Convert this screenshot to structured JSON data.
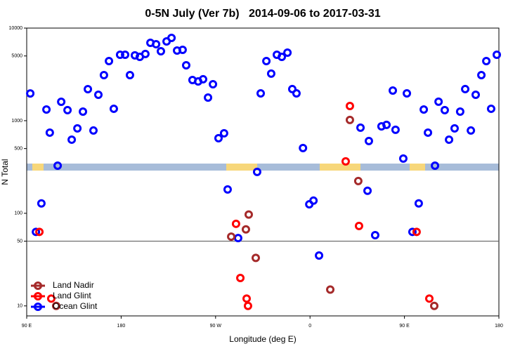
{
  "chart_data": {
    "type": "scatter",
    "title": "0-5N July (Ver 7b)   2014-09-06 to 2017-03-31",
    "x_label": "Longitude (deg E)",
    "y_label": "N Total",
    "log_y": true,
    "xlim": [
      90,
      540
    ],
    "ylim": [
      7.8,
      10000
    ],
    "xticks": [
      {
        "value": 90,
        "label": "90 E"
      },
      180,
      {
        "value": 270,
        "label": "90 W"
      },
      {
        "value": 360,
        "label": "0"
      },
      {
        "value": 450,
        "label": "90 E"
      },
      {
        "value": 540,
        "label": "180"
      }
    ],
    "yticks": [
      10,
      50,
      100,
      500,
      1000,
      5000,
      10000
    ],
    "hline": 50,
    "legend": "lower left",
    "series": [
      {
        "name": "Land Nadir",
        "color": "#a52a2a",
        "x": [
          118.1,
          284.9,
          298.9,
          301.6,
          308.3,
          379.3,
          398,
          406,
          478.4
        ],
        "values": [
          10,
          56,
          67,
          97,
          33,
          15,
          1018,
          223,
          10
        ]
      },
      {
        "name": "Land Glint",
        "color": "#ff0000",
        "x": [
          102.1,
          113.4,
          289.5,
          299.6,
          300.9,
          293.6,
          394,
          398,
          406.7,
          461.6,
          473.7
        ],
        "values": [
          63,
          12,
          77,
          12,
          10,
          20,
          364,
          1442,
          73,
          63,
          12
        ]
      },
      {
        "name": "Ocean Glint",
        "color": "#0000ff",
        "x": [
          93.4,
          104,
          108.8,
          112,
          98.8,
          119.5,
          122.9,
          128.9,
          132.9,
          138.3,
          143.6,
          148.3,
          153.6,
          158.3,
          163.6,
          168.4,
          173,
          179,
          183.8,
          188.4,
          193.1,
          197.8,
          203.1,
          207.9,
          213.3,
          217.9,
          223.3,
          228,
          233.3,
          238.6,
          242,
          248,
          253.4,
          258.1,
          262.8,
          267.5,
          272.8,
          278.1,
          281.5,
          291.5,
          309.6,
          313,
          318.4,
          323,
          328.4,
          333.1,
          338.5,
          343.1,
          347.1,
          353.3,
          359.3,
          363.3,
          368.6,
          408.1,
          416.1,
          414.8,
          422.1,
          428.1,
          432.9,
          441.5,
          438.9,
          448.9,
          452.3,
          457.6,
          463.6,
          468.4,
          472.4,
          479.1,
          482.5,
          488.4,
          492.5,
          497.8,
          503.1,
          507.9,
          513.3,
          517.9,
          523.3,
          528,
          532.6,
          538
        ],
        "values": [
          1970,
          128,
          1320,
          743,
          63,
          327,
          1600,
          1300,
          624,
          826,
          1254,
          2190,
          783,
          1906,
          3106,
          4406,
          1345,
          5150,
          5150,
          3106,
          5070,
          4890,
          5250,
          6930,
          6700,
          5620,
          7180,
          7830,
          5720,
          5820,
          3965,
          2750,
          2656,
          2800,
          1778,
          2477,
          647,
          731,
          181,
          54,
          280,
          1973,
          4406,
          3220,
          5150,
          4890,
          5430,
          2193,
          1973,
          507,
          125,
          137,
          35,
          840,
          603,
          175,
          58,
          869,
          901,
          797,
          2117,
          390,
          1973,
          63,
          128,
          1320,
          743,
          327,
          1603,
          1300,
          624,
          826,
          1254,
          2193,
          783,
          1906,
          3106,
          4406,
          1345,
          5150
        ]
      }
    ]
  }
}
